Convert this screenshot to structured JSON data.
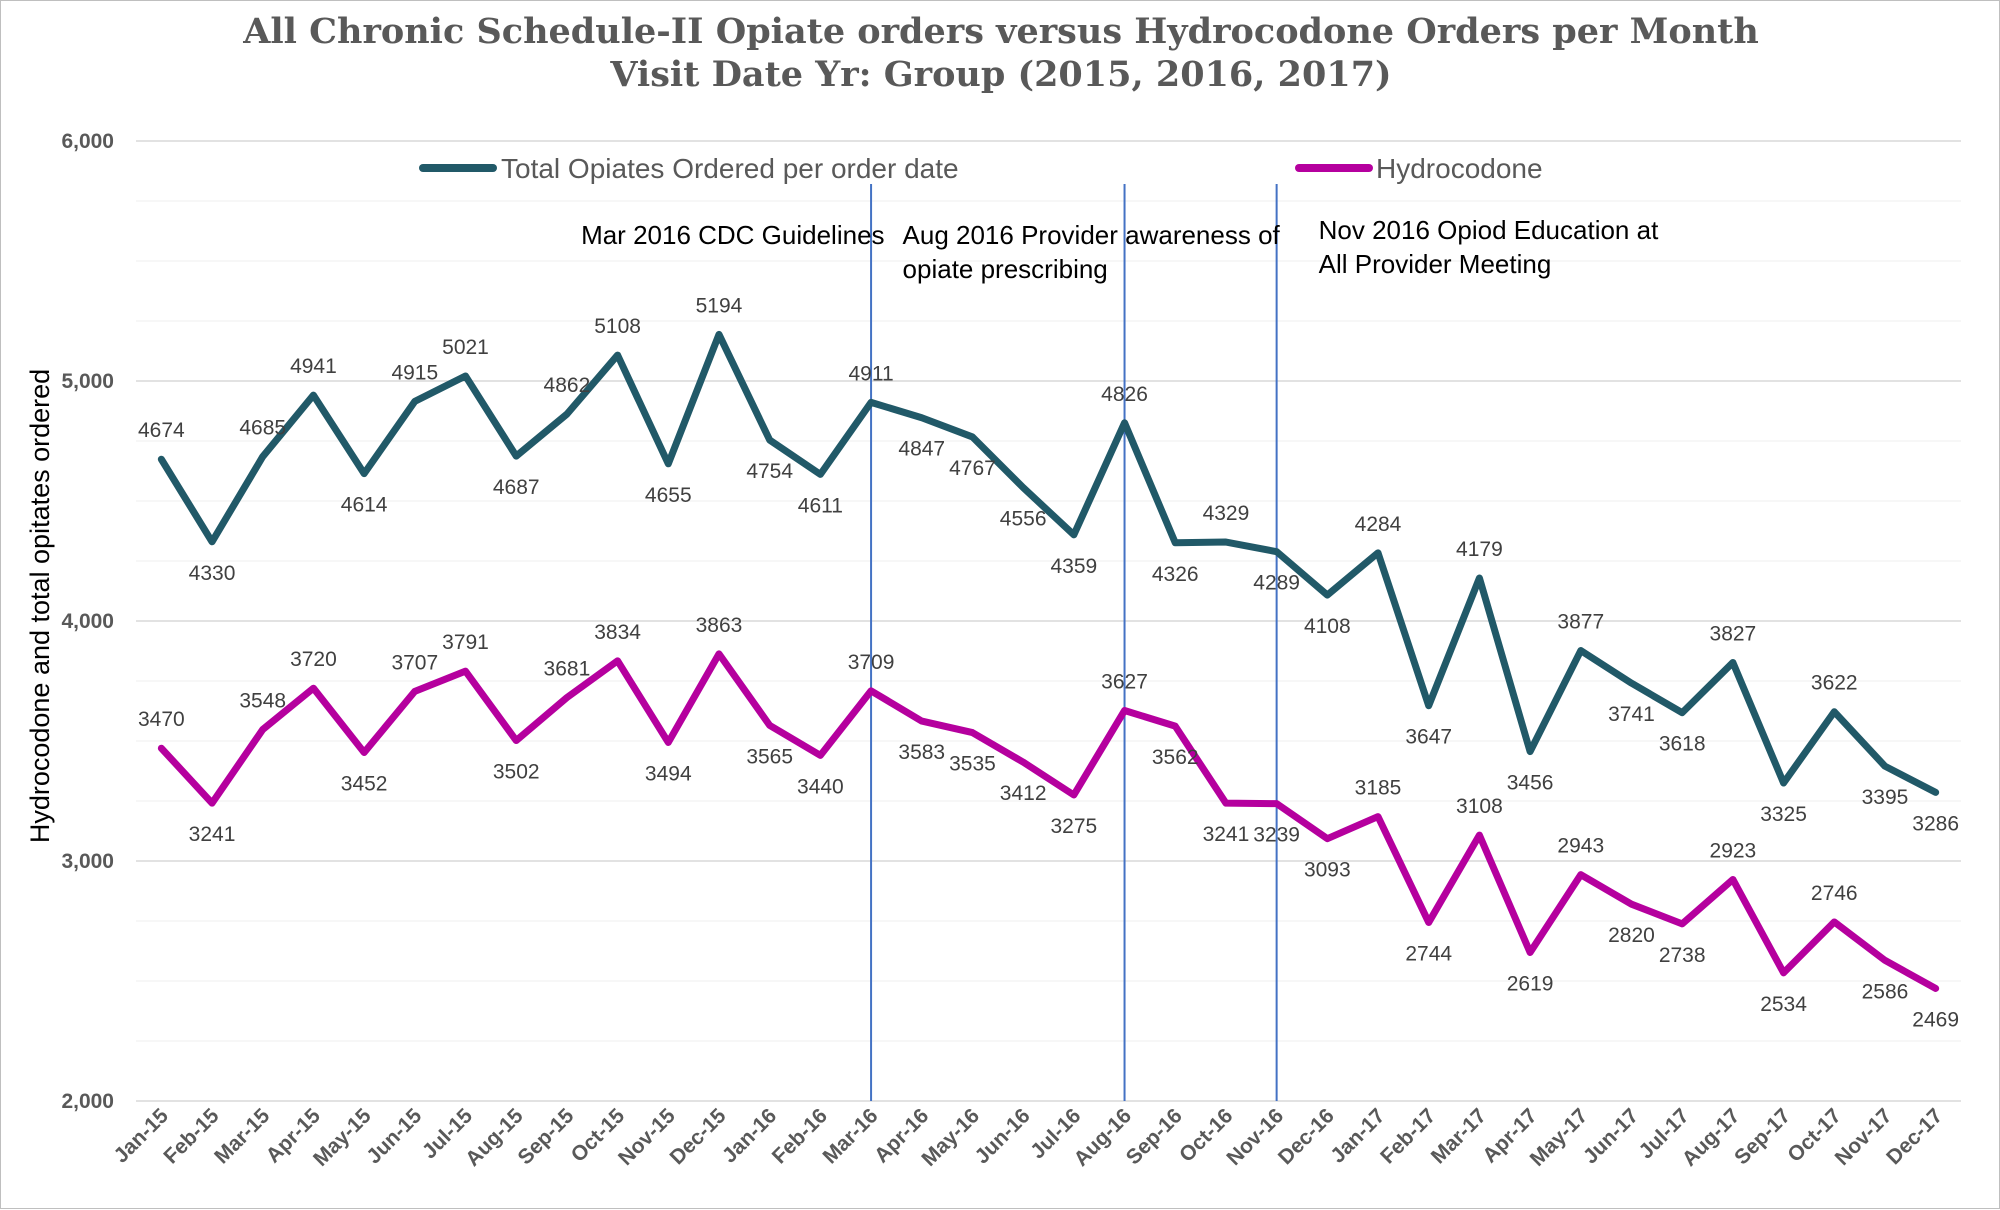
{
  "chart_data": {
    "type": "line",
    "title": "All Chronic Schedule-II Opiate orders versus Hydrocodone Orders per Month",
    "subtitle": "Visit Date Yr: Group (2015, 2016, 2017)",
    "ylabel": "Hydrocodone and total opitates ordered",
    "xlabel": "",
    "ylim": [
      2000,
      6000
    ],
    "yticks": [
      2000,
      3000,
      4000,
      5000,
      6000
    ],
    "ytick_labels": [
      "2,000",
      "3,000",
      "4,000",
      "5,000",
      "6,000"
    ],
    "grid": "horizontal",
    "legend_position": "top",
    "categories": [
      "Jan-15",
      "Feb-15",
      "Mar-15",
      "Apr-15",
      "May-15",
      "Jun-15",
      "Jul-15",
      "Aug-15",
      "Sep-15",
      "Oct-15",
      "Nov-15",
      "Dec-15",
      "Jan-16",
      "Feb-16",
      "Mar-16",
      "Apr-16",
      "May-16",
      "Jun-16",
      "Jul-16",
      "Aug-16",
      "Sep-16",
      "Oct-16",
      "Nov-16",
      "Dec-16",
      "Jan-17",
      "Feb-17",
      "Mar-17",
      "Apr-17",
      "May-17",
      "Jun-17",
      "Jul-17",
      "Aug-17",
      "Sep-17",
      "Oct-17",
      "Nov-17",
      "Dec-17"
    ],
    "series": [
      {
        "name": "Total Opiates Ordered per order date",
        "color": "#215968",
        "values": [
          4674,
          4330,
          4685,
          4941,
          4614,
          4915,
          5021,
          4687,
          4862,
          5108,
          4655,
          5194,
          4754,
          4611,
          4911,
          4847,
          4767,
          4556,
          4359,
          4826,
          4326,
          4329,
          4289,
          4108,
          4284,
          3647,
          4179,
          3456,
          3877,
          3741,
          3618,
          3827,
          3325,
          3622,
          3395,
          3286
        ],
        "labels": [
          "4674",
          "4330",
          "4685",
          "4941",
          "4614",
          "4915",
          "5021",
          "4687",
          "4862",
          "5108",
          "4655",
          "5194",
          "4754",
          "4611",
          "4911",
          "4847",
          "4767",
          "4556",
          "4359",
          "4826",
          "4326",
          "4329",
          "4289",
          "4108",
          "4284",
          "3647",
          "4179",
          "3456",
          "3877",
          "3741",
          "3618",
          "3827",
          "3325",
          "3622",
          "3395",
          "3286"
        ]
      },
      {
        "name": "Hydrocodone",
        "color": "#B5009E",
        "values": [
          3470,
          3241,
          3548,
          3720,
          3452,
          3707,
          3791,
          3502,
          3681,
          3834,
          3494,
          3863,
          3565,
          3440,
          3709,
          3583,
          3535,
          3412,
          3275,
          3627,
          3562,
          3241,
          3239,
          3093,
          3185,
          2744,
          3108,
          2619,
          2943,
          2820,
          2738,
          2923,
          2534,
          2746,
          2586,
          2469
        ],
        "labels": [
          "3470",
          "3241",
          "3548",
          "3720",
          "3452",
          "3707",
          "3791",
          "3502",
          "3681",
          "3834",
          "3494",
          "3863",
          "3565",
          "3440",
          "3709",
          "3583",
          "3535",
          "3412",
          "3275",
          "3627",
          "3562",
          "3241",
          "3239",
          "3093",
          "3185",
          "2744",
          "3108",
          "2619",
          "2943",
          "2820",
          "2738",
          "2923",
          "2534",
          "2746",
          "2586",
          "2469"
        ]
      }
    ],
    "annotations": [
      {
        "category": "Mar-16",
        "text_lines": [
          "Mar 2016 CDC Guidelines"
        ]
      },
      {
        "category": "Aug-16",
        "text_lines": [
          "Aug 2016 Provider awareness of",
          "opiate prescribing"
        ]
      },
      {
        "category": "Nov-16",
        "text_lines": [
          "Nov 2016 Opiod Education at",
          "All Provider Meeting"
        ]
      }
    ],
    "marker_line_color": "#4472C4"
  }
}
